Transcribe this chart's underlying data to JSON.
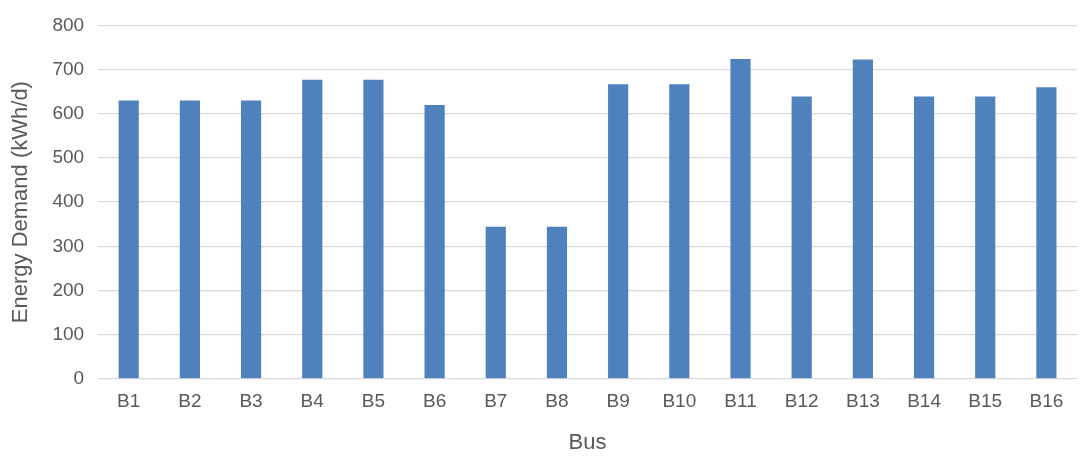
{
  "chart_data": {
    "type": "bar",
    "xlabel": "Bus",
    "ylabel": "Energy Demand (kWh/d)",
    "categories": [
      "B1",
      "B2",
      "B3",
      "B4",
      "B5",
      "B6",
      "B7",
      "B8",
      "B9",
      "B10",
      "B11",
      "B12",
      "B13",
      "B14",
      "B15",
      "B16"
    ],
    "values": [
      630,
      630,
      630,
      677,
      677,
      620,
      344,
      344,
      667,
      667,
      724,
      639,
      723,
      639,
      639,
      660
    ],
    "color": "#4f81bd",
    "ylim": [
      0,
      800
    ],
    "yticks": [
      0,
      100,
      200,
      300,
      400,
      500,
      600,
      700,
      800
    ],
    "grid": "y"
  }
}
